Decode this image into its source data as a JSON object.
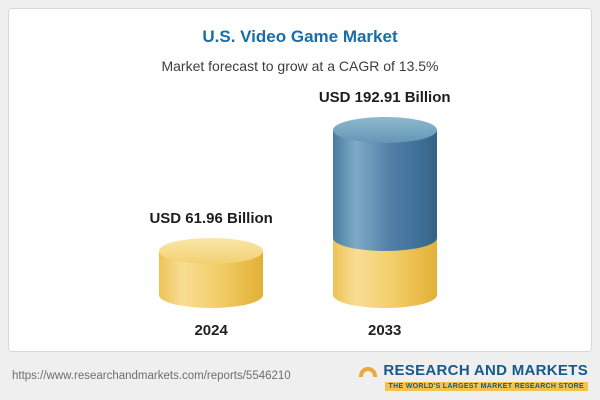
{
  "chart_data": {
    "type": "bar",
    "variant": "3d-cylinder",
    "title": "U.S. Video Game Market",
    "subtitle": "Market forecast to grow at a CAGR of 13.5%",
    "cagr_percent": 13.5,
    "unit": "USD Billion",
    "categories": [
      "2024",
      "2033"
    ],
    "values": [
      61.96,
      192.91
    ],
    "value_labels": [
      "USD 61.96 Billion",
      "USD 192.91 Billion"
    ],
    "legend": "none",
    "grid": "off",
    "colors": {
      "title": "#1a6da6",
      "bar_yellow": "#f2cd63",
      "bar_blue": "#4c86ab"
    }
  },
  "footer": {
    "url": "https://www.researchandmarkets.com/reports/5546210",
    "logo_text": "RESEARCH AND MARKETS",
    "logo_tagline": "THE WORLD'S LARGEST MARKET RESEARCH STORE"
  }
}
